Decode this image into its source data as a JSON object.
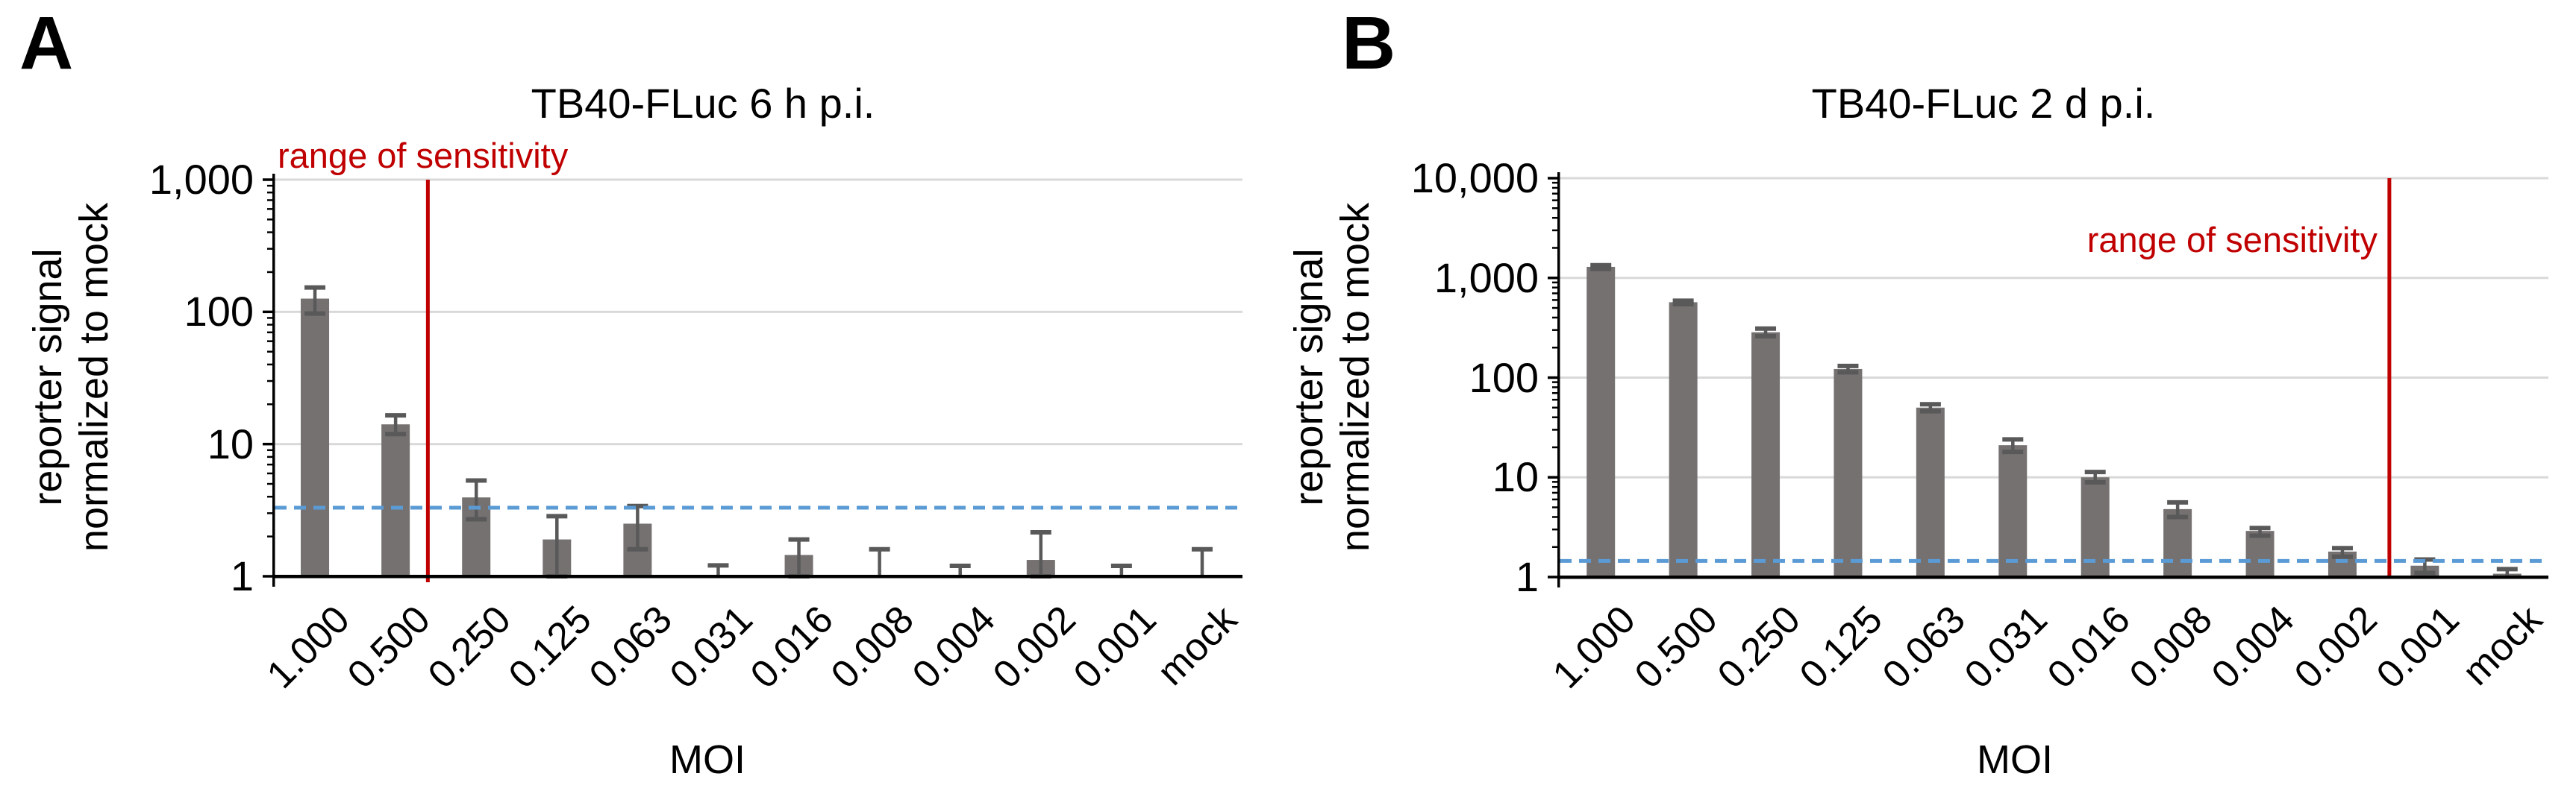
{
  "figure": {
    "background": "#FFFFFF",
    "colors": {
      "bar": "#767171",
      "error_bar": "#595959",
      "gridline": "#D9D9D9",
      "axis": "#000000",
      "threshold_line": "#5B9BD5",
      "sensitivity_line": "#C00000",
      "title_text": "#000000",
      "annotation_text": "#C00000"
    },
    "panels": [
      {
        "label": "A",
        "title": "TB40-FLuc 6 h p.i.",
        "annotation": "range of sensitivity",
        "y_axis_label_line1": "reporter signal",
        "y_axis_label_line2": "normalized to mock",
        "x_axis_label": "MOI",
        "chart_data": {
          "type": "bar",
          "y_scale": "log10",
          "ylim": [
            1,
            1000
          ],
          "grid": true,
          "legend": "none",
          "xlabel": "MOI",
          "ylabel": "reporter signal normalized to mock",
          "y_ticks": [
            {
              "label": "1,000",
              "value": 1000
            },
            {
              "label": "100",
              "value": 100
            },
            {
              "label": "10",
              "value": 10
            },
            {
              "label": "1",
              "value": 1
            }
          ],
          "categories": [
            "1.000",
            "0.500",
            "0.250",
            "0.125",
            "0.063",
            "0.031",
            "0.016",
            "0.008",
            "0.004",
            "0.002",
            "0.001",
            "mock"
          ],
          "values": [
            126,
            14.1,
            3.95,
            1.9,
            2.5,
            1.0,
            1.45,
            1.0,
            0.97,
            1.33,
            0.97,
            1.0
          ],
          "error_low": [
            97,
            11.9,
            2.7,
            1.0,
            1.6,
            null,
            1.0,
            null,
            null,
            1.0,
            null,
            null
          ],
          "error_high": [
            153,
            16.5,
            5.3,
            2.85,
            3.4,
            1.21,
            1.9,
            1.6,
            1.2,
            2.15,
            1.2,
            1.6
          ],
          "threshold_line": {
            "value": 3.3,
            "style": "dashed"
          },
          "sensitivity_line": {
            "label": "range of sensitivity",
            "position_between_categories": 1.9
          }
        }
      },
      {
        "label": "B",
        "title": "TB40-FLuc 2 d p.i.",
        "annotation": "range of sensitivity",
        "y_axis_label_line1": "reporter signal",
        "y_axis_label_line2": "normalized to mock",
        "x_axis_label": "MOI",
        "chart_data": {
          "type": "bar",
          "y_scale": "log10",
          "ylim": [
            1,
            10000
          ],
          "grid": true,
          "legend": "none",
          "xlabel": "MOI",
          "ylabel": "reporter signal normalized to mock",
          "y_ticks": [
            {
              "label": "10,000",
              "value": 10000
            },
            {
              "label": "1,000",
              "value": 1000
            },
            {
              "label": "100",
              "value": 100
            },
            {
              "label": "10",
              "value": 10
            },
            {
              "label": "1",
              "value": 1
            }
          ],
          "categories": [
            "1.000",
            "0.500",
            "0.250",
            "0.125",
            "0.063",
            "0.031",
            "0.016",
            "0.008",
            "0.004",
            "0.002",
            "0.001",
            "mock"
          ],
          "values": [
            1290,
            570,
            285,
            122,
            50,
            21,
            10,
            4.8,
            2.9,
            1.8,
            1.3,
            1.08
          ],
          "error_low": [
            1230,
            545,
            260,
            113,
            46,
            18,
            8.9,
            4.0,
            2.6,
            1.6,
            1.1,
            null
          ],
          "error_high": [
            1340,
            590,
            310,
            131,
            54,
            24,
            11.3,
            5.6,
            3.1,
            1.95,
            1.5,
            1.2
          ],
          "threshold_line": {
            "value": 1.45,
            "style": "dashed"
          },
          "sensitivity_line": {
            "label": "range of sensitivity",
            "position_between_categories": 10.07
          }
        }
      }
    ]
  }
}
